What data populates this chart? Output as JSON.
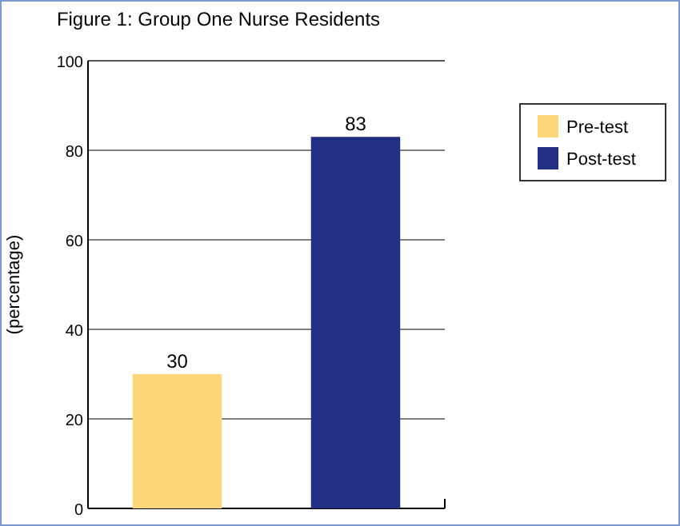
{
  "chart_data": {
    "type": "bar",
    "title": "Figure 1: Group One Nurse Residents",
    "ylabel": "(percentage)",
    "categories": [
      null,
      null
    ],
    "series": [
      {
        "name": "Pre-test",
        "color": "#fed67a",
        "values": [
          30,
          null
        ]
      },
      {
        "name": "Post-test",
        "color": "#232f85",
        "values": [
          null,
          83
        ]
      }
    ],
    "ylim": [
      0,
      100
    ],
    "yticks": [
      0,
      20,
      40,
      60,
      80,
      100
    ],
    "grid": "y",
    "legend": "right",
    "data_labels": true
  }
}
